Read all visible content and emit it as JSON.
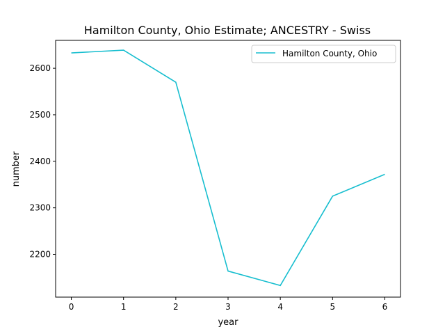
{
  "chart_data": {
    "type": "line",
    "title": "Hamilton County, Ohio Estimate; ANCESTRY - Swiss",
    "xlabel": "year",
    "ylabel": "number",
    "x": [
      0,
      1,
      2,
      3,
      4,
      5,
      6
    ],
    "x_ticks": [
      "0",
      "1",
      "2",
      "3",
      "4",
      "5",
      "6"
    ],
    "y_ticks": [
      "2200",
      "2300",
      "2400",
      "2500",
      "2600"
    ],
    "xlim": [
      -0.3,
      6.3
    ],
    "ylim": [
      2108,
      2660
    ],
    "grid": false,
    "legend_position": "top-right",
    "series": [
      {
        "name": "Hamilton County, Ohio",
        "color": "#17becf",
        "values": [
          2633,
          2639,
          2570,
          2164,
          2133,
          2325,
          2372
        ]
      }
    ]
  }
}
